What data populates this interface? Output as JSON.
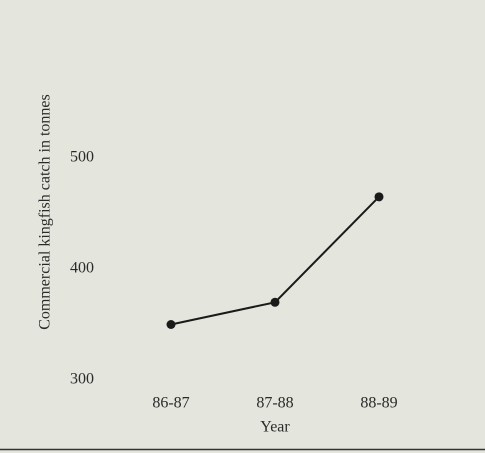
{
  "chart_data": {
    "type": "line",
    "categories": [
      "86-87",
      "87-88",
      "88-89"
    ],
    "values": [
      350,
      370,
      465
    ],
    "color": "#1a1a1a",
    "ylim": [
      300,
      500
    ],
    "yticks": [
      300,
      400,
      500
    ],
    "x_label": "Year",
    "y_label": "Commercial kingfish catch in tonnes",
    "grid": false
  }
}
